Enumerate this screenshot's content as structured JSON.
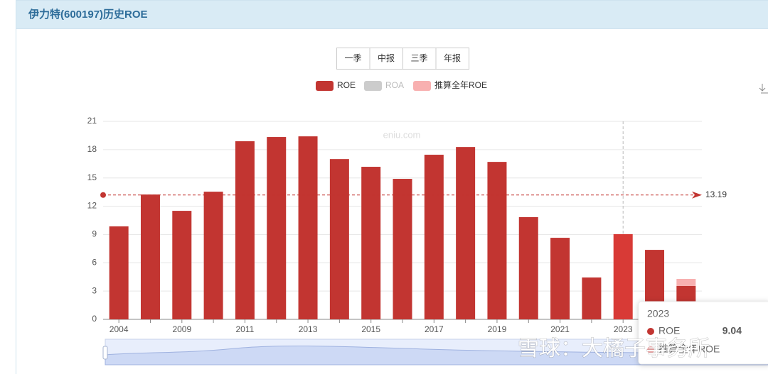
{
  "header": {
    "title": "伊力特(600197)历史ROE"
  },
  "buttons": [
    "一季",
    "中报",
    "三季",
    "年报"
  ],
  "chart_data": {
    "type": "bar",
    "watermark": "eniu.com",
    "categories": [
      "2004",
      null,
      "2009",
      null,
      "2011",
      null,
      "2013",
      null,
      "2015",
      null,
      "2017",
      null,
      "2019",
      null,
      "2021",
      null,
      "2023",
      null,
      null
    ],
    "series": [
      {
        "name": "ROE",
        "color": "#c23531",
        "values": [
          9.86,
          13.24,
          11.51,
          13.54,
          18.89,
          19.34,
          19.41,
          17.0,
          16.18,
          14.9,
          17.46,
          18.28,
          16.7,
          10.84,
          8.65,
          4.44,
          9.04,
          7.37,
          3.54
        ]
      },
      {
        "name": "ROA",
        "color": "#cccccc",
        "visible": false
      },
      {
        "name": "推算全年ROE",
        "color": "#f8b0b0",
        "stacked": true,
        "values": [
          null,
          null,
          null,
          null,
          null,
          null,
          null,
          null,
          null,
          null,
          null,
          null,
          null,
          null,
          null,
          null,
          null,
          null,
          0.75
        ]
      }
    ],
    "ylim": [
      0,
      21
    ],
    "yticks": [
      0,
      3,
      6,
      9,
      12,
      15,
      18,
      21
    ],
    "grid": true,
    "markline": {
      "value": 13.19,
      "label": "13.19"
    },
    "tooltip": {
      "index": 16,
      "rows": [
        "ROE",
        "推算全年ROE"
      ]
    }
  },
  "overlay_watermark": "雪球：大橘子事务所"
}
